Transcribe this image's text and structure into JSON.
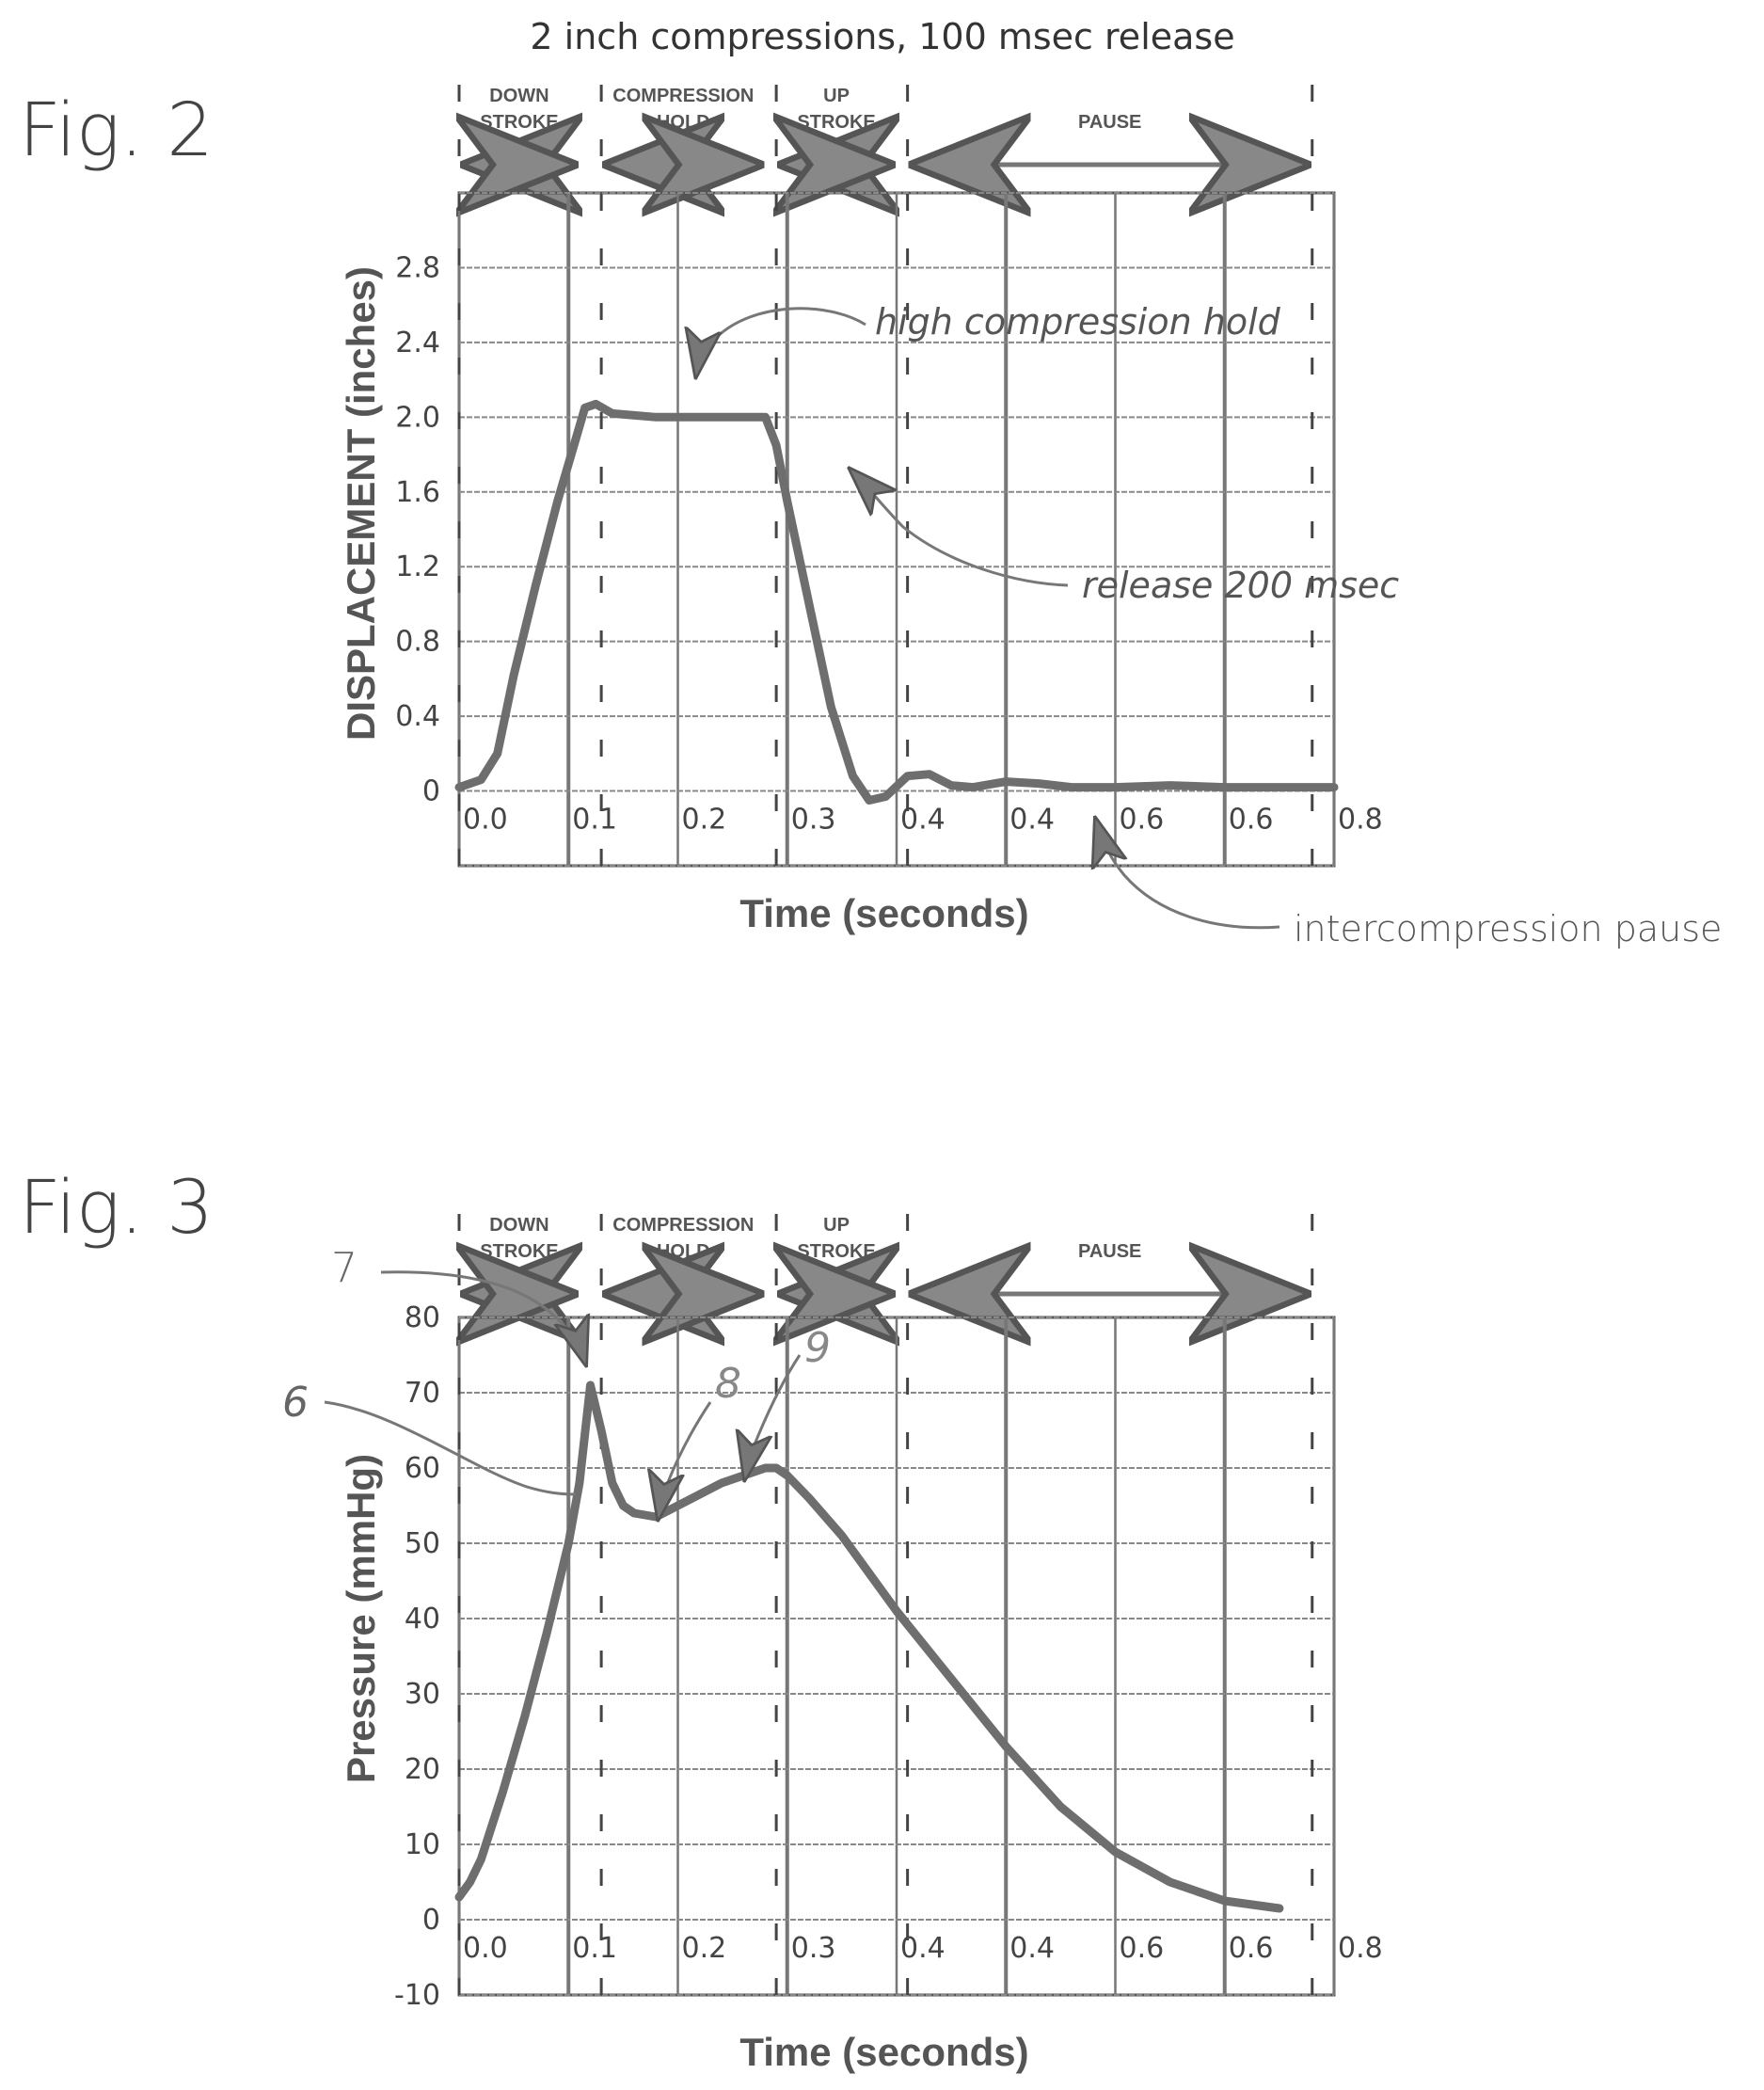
{
  "chart_data": [
    {
      "type": "line",
      "figure_label": "Fig. 2",
      "title": "2 inch compressions, 100 msec release",
      "xlabel": "Time (seconds)",
      "ylabel": "DISPLACEMENT (inches)",
      "x_tick_labels": [
        "0.0",
        "0.1",
        "0.2",
        "0.3",
        "0.4",
        "0.4",
        "0.6",
        "0.6",
        "0.8"
      ],
      "y_ticks": [
        0,
        0.4,
        0.8,
        1.2,
        1.6,
        2.0,
        2.4,
        2.8
      ],
      "y_tick_labels": [
        "0",
        "0.4",
        "0.8",
        "1.2",
        "1.6",
        "2.0",
        "2.4",
        "2.8"
      ],
      "xlim": [
        0,
        0.8
      ],
      "ylim": [
        -0.4,
        3.2
      ],
      "grid": true,
      "phases": [
        {
          "label": "DOWN\nSTROKE",
          "start": 0.0,
          "end": 0.11
        },
        {
          "label": "COMPRESSION\nHOLD",
          "start": 0.13,
          "end": 0.28
        },
        {
          "label": "UP\nSTROKE",
          "start": 0.29,
          "end": 0.4
        },
        {
          "label": "PAUSE",
          "start": 0.41,
          "end": 0.78
        }
      ],
      "series": [
        {
          "x": [
            0.0,
            0.02,
            0.035,
            0.05,
            0.07,
            0.09,
            0.105,
            0.115,
            0.125,
            0.14,
            0.18,
            0.22,
            0.26,
            0.28,
            0.29,
            0.3,
            0.32,
            0.34,
            0.36,
            0.375,
            0.39,
            0.41,
            0.43,
            0.45,
            0.47,
            0.5,
            0.53,
            0.56,
            0.6,
            0.65,
            0.7,
            0.75,
            0.8
          ],
          "values": [
            0.02,
            0.06,
            0.2,
            0.62,
            1.1,
            1.55,
            1.85,
            2.05,
            2.07,
            2.02,
            2.0,
            2.0,
            2.0,
            2.0,
            1.85,
            1.55,
            1.0,
            0.45,
            0.08,
            -0.05,
            -0.03,
            0.08,
            0.09,
            0.03,
            0.02,
            0.05,
            0.04,
            0.02,
            0.02,
            0.03,
            0.02,
            0.02,
            0.02
          ]
        }
      ],
      "annotations": [
        {
          "text": "high compression hold",
          "x": 0.21,
          "y": 2.05
        },
        {
          "text": "release 200 msec",
          "x": 0.36,
          "y": 1.62
        },
        {
          "text": "intercompression pause",
          "x": 0.58,
          "y": 0.02
        }
      ]
    },
    {
      "type": "line",
      "figure_label": "Fig. 3",
      "xlabel": "Time (seconds)",
      "ylabel": "Pressure (mmHg)",
      "x_tick_labels": [
        "0.0",
        "0.1",
        "0.2",
        "0.3",
        "0.4",
        "0.4",
        "0.6",
        "0.6",
        "0.8"
      ],
      "y_ticks": [
        -10,
        0,
        10,
        20,
        30,
        40,
        50,
        60,
        70,
        80
      ],
      "y_tick_labels": [
        "-10",
        "0",
        "10",
        "20",
        "30",
        "40",
        "50",
        "60",
        "70",
        "80"
      ],
      "xlim": [
        0,
        0.8
      ],
      "ylim": [
        -10,
        80
      ],
      "grid": true,
      "phases": [
        {
          "label": "DOWN\nSTROKE",
          "start": 0.0,
          "end": 0.11
        },
        {
          "label": "COMPRESSION\nHOLD",
          "start": 0.13,
          "end": 0.28
        },
        {
          "label": "UP\nSTROKE",
          "start": 0.29,
          "end": 0.4
        },
        {
          "label": "PAUSE",
          "start": 0.41,
          "end": 0.78
        }
      ],
      "series": [
        {
          "x": [
            0.0,
            0.01,
            0.02,
            0.04,
            0.06,
            0.08,
            0.1,
            0.11,
            0.12,
            0.13,
            0.14,
            0.15,
            0.16,
            0.18,
            0.2,
            0.22,
            0.24,
            0.26,
            0.28,
            0.29,
            0.3,
            0.32,
            0.35,
            0.4,
            0.45,
            0.5,
            0.55,
            0.6,
            0.65,
            0.7,
            0.75
          ],
          "values": [
            3,
            5,
            8,
            17,
            27,
            38,
            50,
            58,
            71,
            65,
            58,
            55,
            54,
            53.5,
            55,
            56.5,
            58,
            59,
            60,
            60,
            59,
            56,
            51,
            41,
            32,
            23,
            15,
            9,
            5,
            2.5,
            1.5
          ]
        }
      ],
      "annotations": [
        {
          "text": "6",
          "x": 0.1,
          "y": 57
        },
        {
          "text": "7",
          "x": 0.115,
          "y": 77
        },
        {
          "text": "8",
          "x": 0.18,
          "y": 53.5
        },
        {
          "text": "9",
          "x": 0.26,
          "y": 59
        }
      ]
    }
  ]
}
